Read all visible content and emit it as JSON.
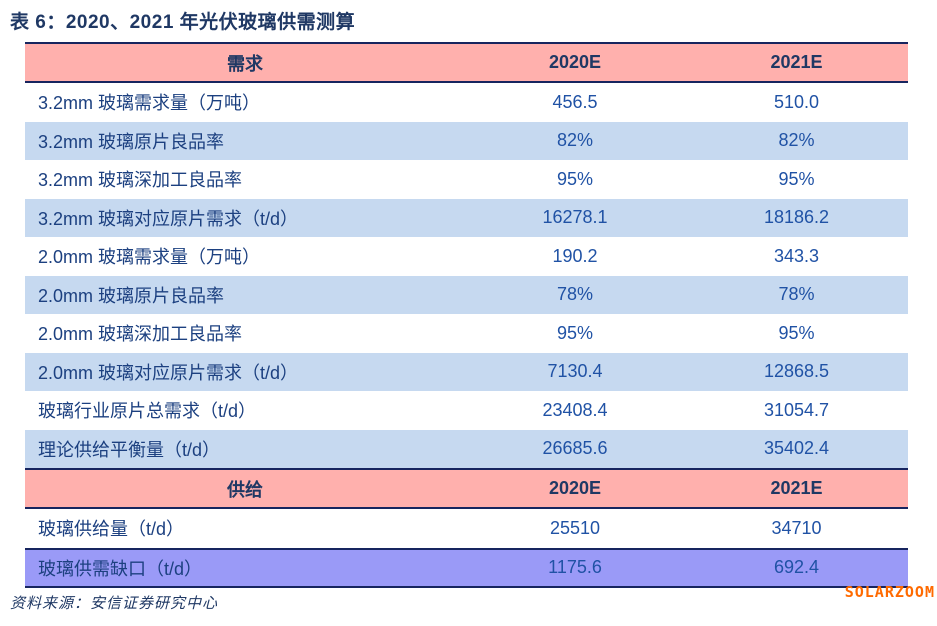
{
  "title": "表 6：2020、2021 年光伏玻璃供需测算",
  "source_note": "资料来源：安信证券研究中心",
  "watermark": "SOLARZOOM",
  "colors": {
    "header_bg": "#FFB0AD",
    "alt_row_bg": "#C6D9F0",
    "highlight_row_bg": "#9A9AF7",
    "border_navy": "#17255F",
    "title_text": "#1F3864",
    "label_text": "#1C4080",
    "value_text": "#2052A5",
    "watermark_orange": "#FF6A00"
  },
  "table": {
    "columns": [
      "2020E",
      "2021E"
    ],
    "sections": [
      {
        "header": {
          "title": "需求",
          "col_2020": "2020E",
          "col_2021": "2021E"
        },
        "rows": [
          {
            "label": "3.2mm 玻璃需求量（万吨）",
            "v2020": "456.5",
            "v2021": "510.0"
          },
          {
            "label": "3.2mm 玻璃原片良品率",
            "v2020": "82%",
            "v2021": "82%"
          },
          {
            "label": "3.2mm 玻璃深加工良品率",
            "v2020": "95%",
            "v2021": "95%"
          },
          {
            "label": "3.2mm 玻璃对应原片需求（t/d）",
            "v2020": "16278.1",
            "v2021": "18186.2"
          },
          {
            "label": "2.0mm 玻璃需求量（万吨）",
            "v2020": "190.2",
            "v2021": "343.3"
          },
          {
            "label": "2.0mm 玻璃原片良品率",
            "v2020": "78%",
            "v2021": "78%"
          },
          {
            "label": "2.0mm 玻璃深加工良品率",
            "v2020": "95%",
            "v2021": "95%"
          },
          {
            "label": "2.0mm 玻璃对应原片需求（t/d）",
            "v2020": "7130.4",
            "v2021": "12868.5"
          },
          {
            "label": "玻璃行业原片总需求（t/d）",
            "v2020": "23408.4",
            "v2021": "31054.7"
          },
          {
            "label": "理论供给平衡量（t/d）",
            "v2020": "26685.6",
            "v2021": "35402.4"
          }
        ]
      },
      {
        "header": {
          "title": "供给",
          "col_2020": "2020E",
          "col_2021": "2021E"
        },
        "rows": [
          {
            "label": "玻璃供给量（t/d）",
            "v2020": "25510",
            "v2021": "34710"
          },
          {
            "label": "玻璃供需缺口（t/d）",
            "v2020": "1175.6",
            "v2021": "692.4",
            "highlight": true
          }
        ]
      }
    ]
  }
}
